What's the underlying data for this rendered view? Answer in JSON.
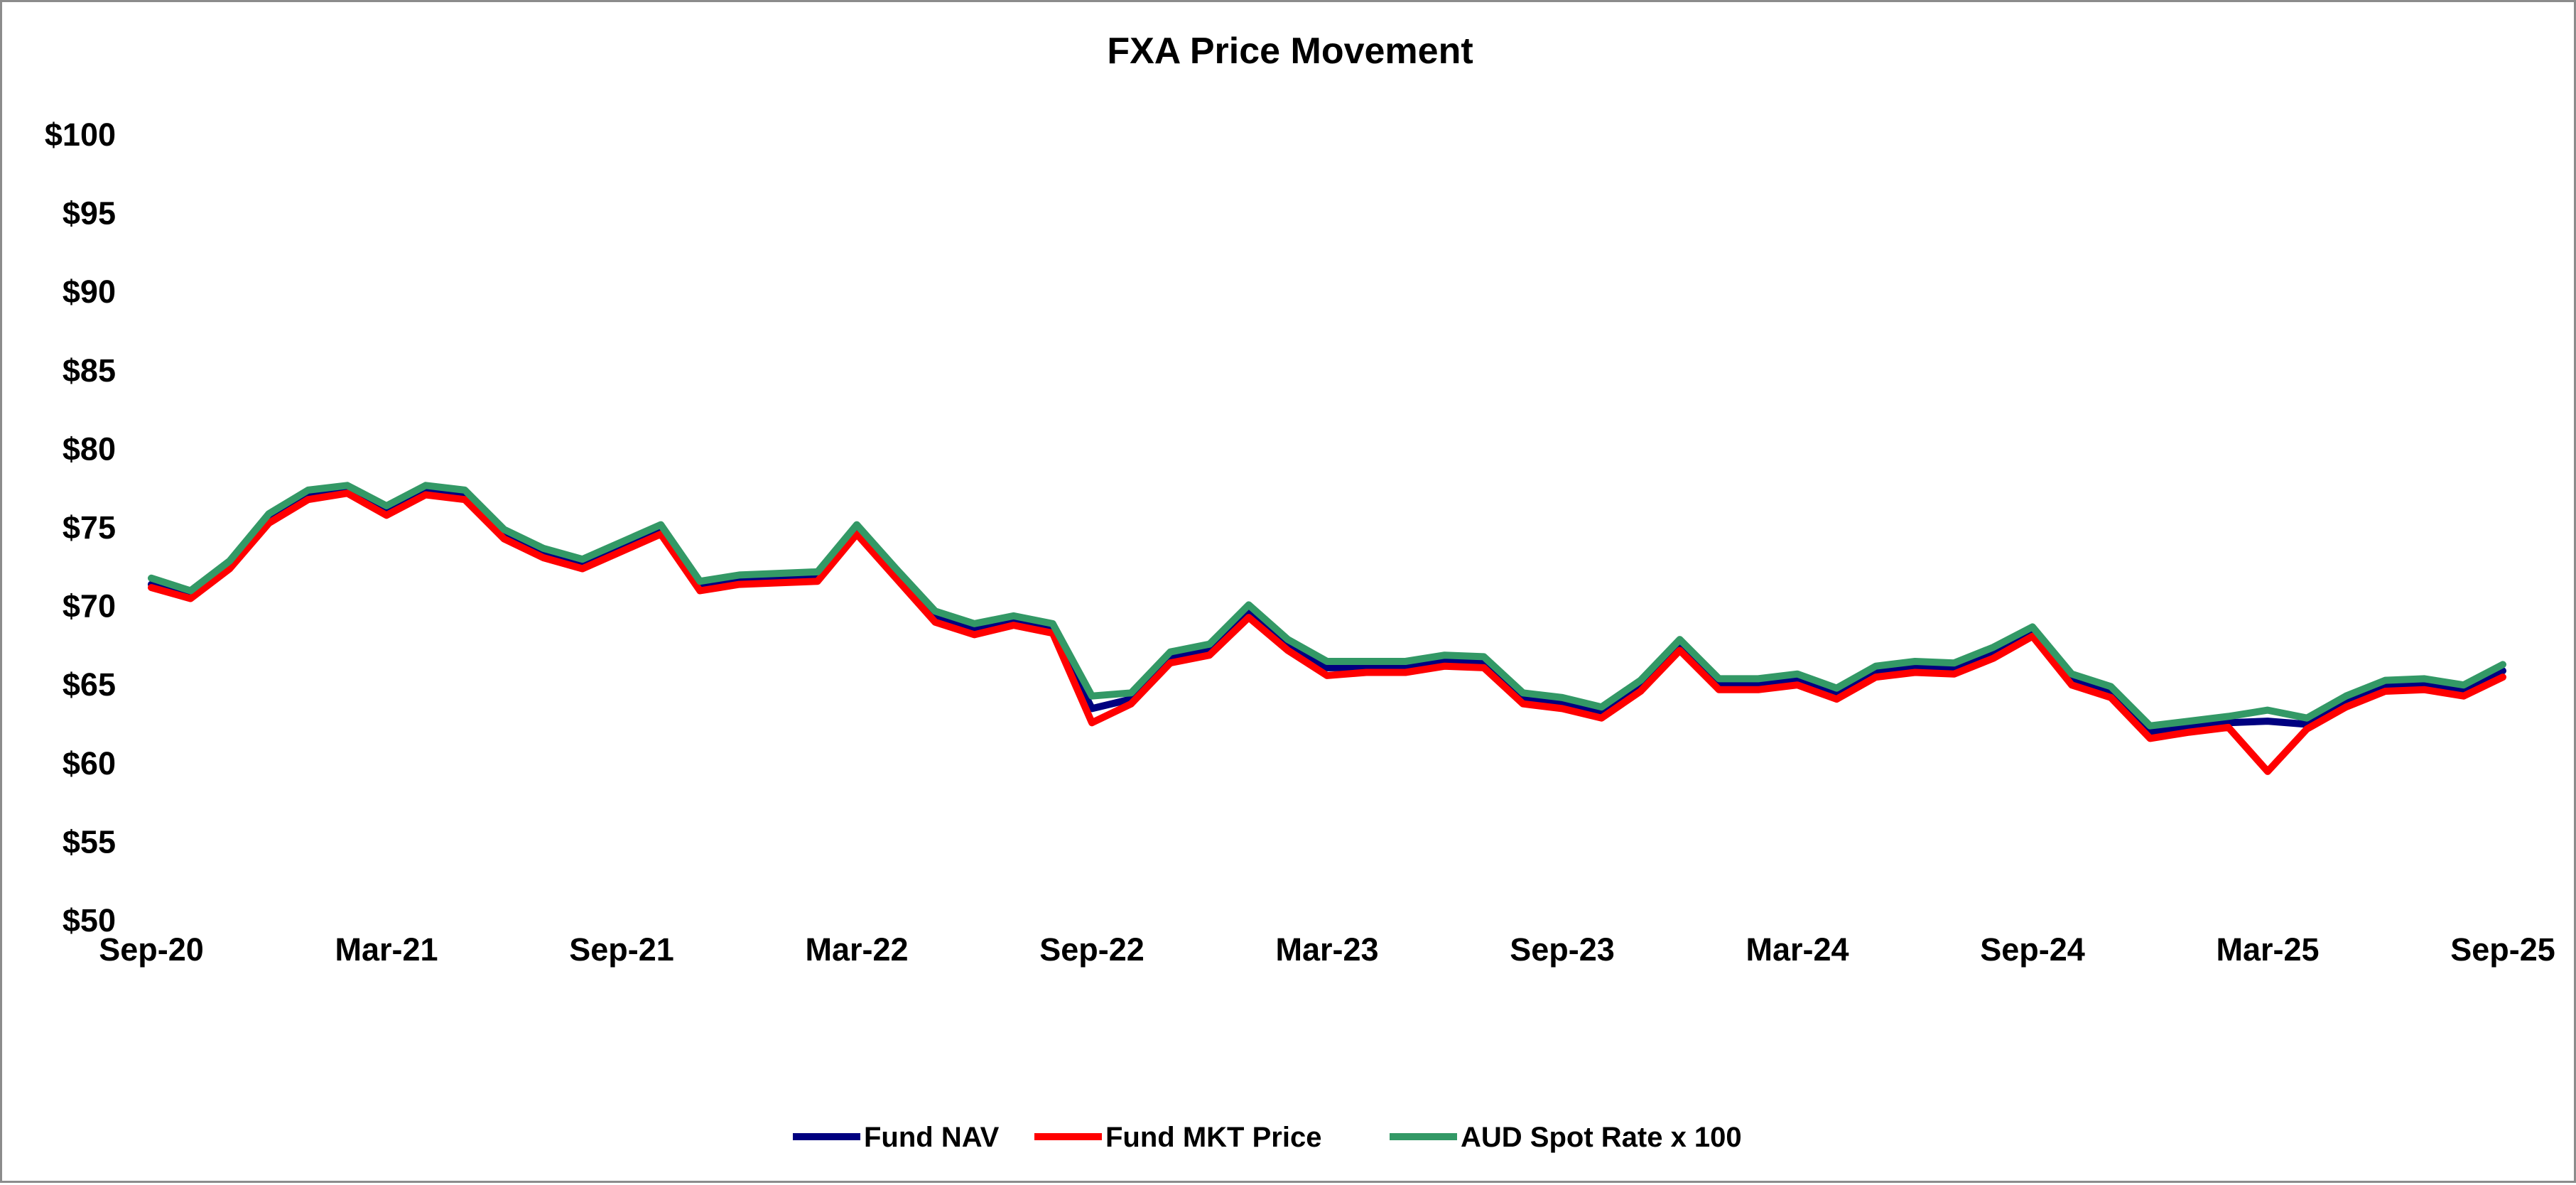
{
  "chart_data": {
    "type": "line",
    "title": "FXA Price Movement",
    "xlabel": "",
    "ylabel": "",
    "ylim": [
      50,
      100
    ],
    "y_ticks": [
      "$50",
      "$55",
      "$60",
      "$65",
      "$70",
      "$75",
      "$80",
      "$85",
      "$90",
      "$95",
      "$100"
    ],
    "x_ticks": [
      "Sep-20",
      "Mar-21",
      "Sep-21",
      "Mar-22",
      "Sep-22",
      "Mar-23",
      "Sep-23",
      "Mar-24",
      "Sep-24",
      "Mar-25",
      "Sep-25"
    ],
    "x_range": [
      "2020-09",
      "2025-09"
    ],
    "grid": false,
    "legend_position": "bottom",
    "x": [
      "2020-09",
      "2020-10",
      "2020-11",
      "2020-12",
      "2021-01",
      "2021-02",
      "2021-03",
      "2021-04",
      "2021-05",
      "2021-06",
      "2021-07",
      "2021-08",
      "2021-09",
      "2021-10",
      "2021-11",
      "2021-12",
      "2022-01",
      "2022-02",
      "2022-03",
      "2022-04",
      "2022-05",
      "2022-06",
      "2022-07",
      "2022-08",
      "2022-09",
      "2022-10",
      "2022-11",
      "2022-12",
      "2023-01",
      "2023-02",
      "2023-03",
      "2023-04",
      "2023-05",
      "2023-06",
      "2023-07",
      "2023-08",
      "2023-09",
      "2023-10",
      "2023-11",
      "2023-12",
      "2024-01",
      "2024-02",
      "2024-03",
      "2024-04",
      "2024-05",
      "2024-06",
      "2024-07",
      "2024-08",
      "2024-09",
      "2024-10",
      "2024-11",
      "2024-12",
      "2025-01",
      "2025-02",
      "2025-03",
      "2025-04",
      "2025-05",
      "2025-06",
      "2025-07",
      "2025-08",
      "2025-09"
    ],
    "series": [
      {
        "name": "Fund NAV",
        "color": "#000080",
        "values": [
          71.4,
          70.6,
          72.5,
          75.5,
          77.0,
          77.3,
          76.0,
          77.3,
          77.0,
          74.5,
          73.3,
          72.6,
          73.7,
          74.8,
          71.2,
          71.6,
          71.7,
          71.8,
          74.8,
          72.0,
          69.3,
          68.5,
          69.0,
          68.5,
          63.5,
          64.1,
          66.7,
          67.2,
          69.7,
          67.5,
          66.1,
          66.1,
          66.1,
          66.5,
          66.4,
          64.1,
          63.8,
          63.2,
          64.9,
          67.5,
          65.0,
          65.0,
          65.3,
          64.4,
          65.8,
          66.1,
          66.0,
          67.0,
          68.3,
          65.3,
          64.5,
          62.0,
          62.3,
          62.6,
          62.7,
          62.5,
          63.9,
          64.9,
          65.0,
          64.6,
          65.9
        ]
      },
      {
        "name": "Fund MKT Price",
        "color": "#ff0000",
        "values": [
          71.2,
          70.5,
          72.4,
          75.3,
          76.8,
          77.2,
          75.8,
          77.1,
          76.8,
          74.3,
          73.1,
          72.4,
          73.5,
          74.6,
          71.0,
          71.4,
          71.5,
          71.6,
          74.6,
          71.8,
          69.0,
          68.2,
          68.8,
          68.3,
          62.6,
          63.8,
          66.4,
          66.9,
          69.3,
          67.2,
          65.6,
          65.8,
          65.8,
          66.2,
          66.1,
          63.8,
          63.5,
          62.9,
          64.6,
          67.2,
          64.7,
          64.7,
          65.0,
          64.1,
          65.5,
          65.8,
          65.7,
          66.7,
          68.1,
          65.0,
          64.2,
          61.6,
          62.0,
          62.3,
          59.5,
          62.2,
          63.6,
          64.6,
          64.7,
          64.3,
          65.5
        ]
      },
      {
        "name": "AUD Spot Rate x 100",
        "color": "#339966",
        "values": [
          71.8,
          71.0,
          72.9,
          75.9,
          77.4,
          77.7,
          76.4,
          77.7,
          77.4,
          74.9,
          73.7,
          73.0,
          74.1,
          75.2,
          71.6,
          72.0,
          72.1,
          72.2,
          75.2,
          72.4,
          69.7,
          68.9,
          69.4,
          68.9,
          64.3,
          64.5,
          67.1,
          67.6,
          70.1,
          67.9,
          66.5,
          66.5,
          66.5,
          66.9,
          66.8,
          64.5,
          64.2,
          63.6,
          65.3,
          67.9,
          65.4,
          65.4,
          65.7,
          64.8,
          66.2,
          66.5,
          66.4,
          67.4,
          68.7,
          65.7,
          64.9,
          62.4,
          62.7,
          63.0,
          63.4,
          62.9,
          64.3,
          65.3,
          65.4,
          65.0,
          66.3
        ]
      }
    ]
  }
}
